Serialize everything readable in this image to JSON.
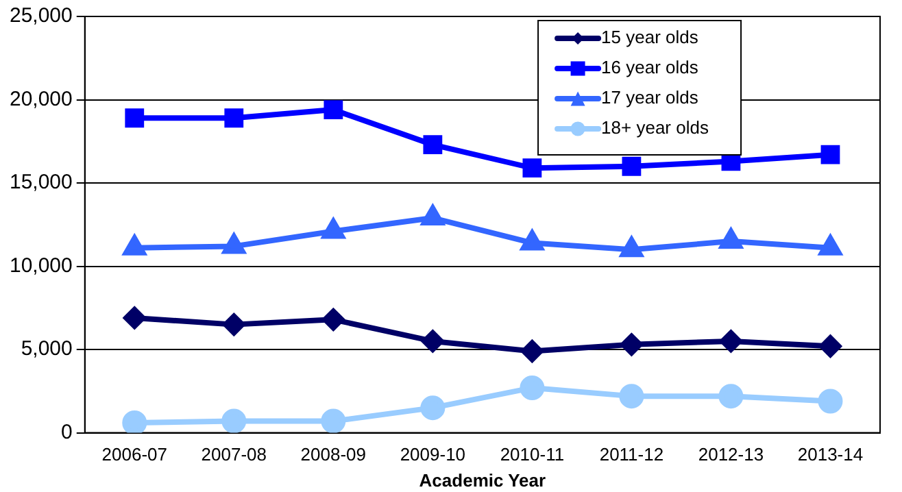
{
  "chart_data": {
    "type": "line",
    "xlabel": "Academic Year",
    "categories": [
      "2006-07",
      "2007-08",
      "2008-09",
      "2009-10",
      "2010-11",
      "2011-12",
      "2012-13",
      "2013-14"
    ],
    "series": [
      {
        "name": "15 year olds",
        "color": "#000066",
        "marker": "diamond",
        "values": [
          6900,
          6500,
          6800,
          5500,
          4900,
          5300,
          5500,
          5200
        ]
      },
      {
        "name": "16 year olds",
        "color": "#0000ff",
        "marker": "square",
        "values": [
          18900,
          18900,
          19400,
          17300,
          15900,
          16000,
          16300,
          16700
        ]
      },
      {
        "name": "17 year olds",
        "color": "#3366ff",
        "marker": "triangle",
        "values": [
          11100,
          11200,
          12100,
          12900,
          11400,
          11000,
          11500,
          11100
        ]
      },
      {
        "name": "18+ year olds",
        "color": "#99ccff",
        "marker": "circle",
        "values": [
          600,
          700,
          700,
          1500,
          2700,
          2200,
          2200,
          1900
        ]
      }
    ],
    "ylim": [
      0,
      25000
    ],
    "yticks": [
      0,
      {
        "value": 5000,
        "label": "5,000"
      },
      {
        "value": 10000,
        "label": "10,000"
      },
      {
        "value": 15000,
        "label": "15,000"
      },
      {
        "value": 20000,
        "label": "20,000"
      },
      {
        "value": 25000,
        "label": "25,000"
      }
    ],
    "grid": "y",
    "legend": "top"
  }
}
